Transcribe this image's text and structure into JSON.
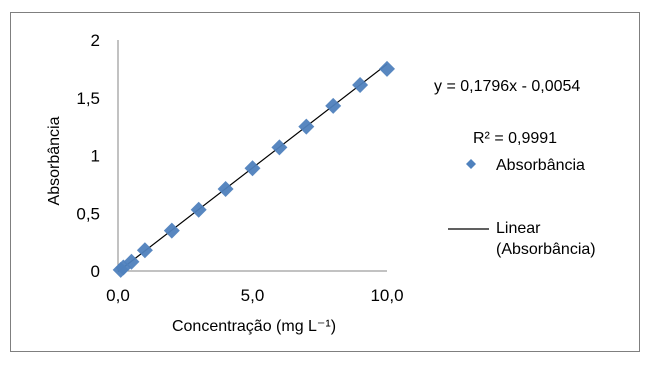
{
  "chart_data": {
    "type": "scatter",
    "title": "",
    "xlabel": "Concentração (mg L⁻¹)",
    "ylabel": "Absorbância",
    "xlim": [
      0,
      10
    ],
    "ylim": [
      0,
      2
    ],
    "x_ticks": [
      "0,0",
      "5,0",
      "10,0"
    ],
    "x_tick_values": [
      0,
      5,
      10
    ],
    "y_ticks": [
      "0",
      "0,5",
      "1",
      "1,5",
      "2"
    ],
    "y_tick_values": [
      0,
      0.5,
      1,
      1.5,
      2
    ],
    "grid": false,
    "legend_position": "right",
    "marker_color": "#4f81bd",
    "line_color": "#000000",
    "series": [
      {
        "name": "Absorbância",
        "kind": "scatter",
        "x": [
          0.1,
          0.2,
          0.5,
          1,
          2,
          3,
          4,
          5,
          6,
          7,
          8,
          9,
          10
        ],
        "y": [
          0.01,
          0.03,
          0.08,
          0.18,
          0.35,
          0.53,
          0.71,
          0.89,
          1.07,
          1.25,
          1.43,
          1.61,
          1.75
        ]
      },
      {
        "name": "Linear (Absorbância)",
        "kind": "line",
        "slope": 0.1796,
        "intercept": -0.0054
      }
    ],
    "annotations": {
      "equation": "y = 0,1796x - 0,0054",
      "r_squared": "R² = 0,9991"
    },
    "legend": {
      "scatter_label": "Absorbância",
      "line_label_1": "Linear",
      "line_label_2": "(Absorbância)"
    }
  }
}
